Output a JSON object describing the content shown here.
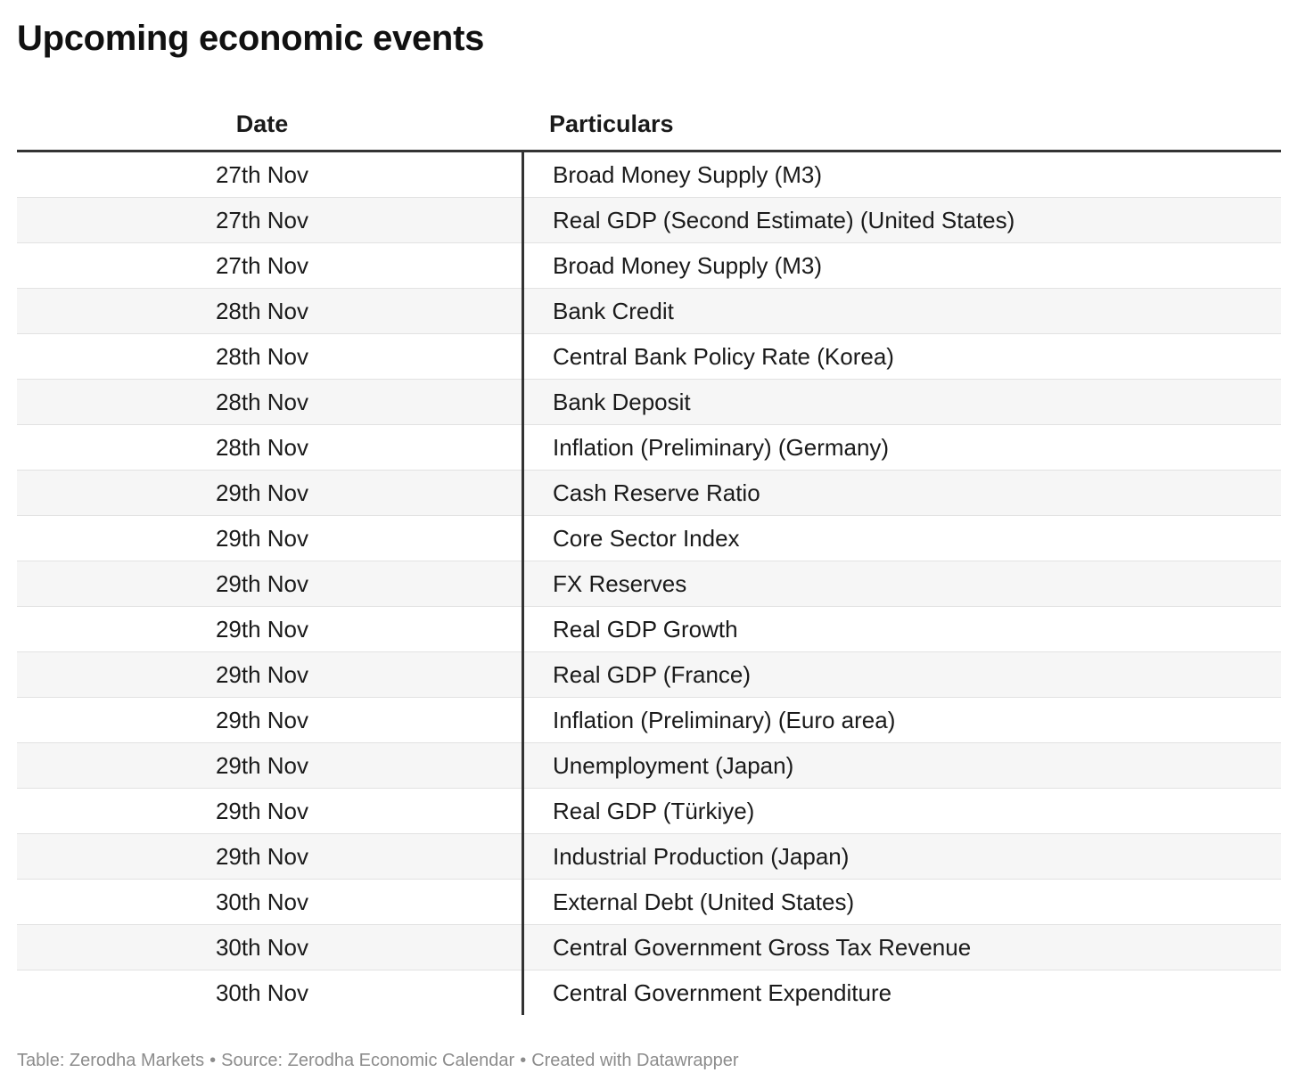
{
  "chart_data": {
    "type": "table",
    "title": "Upcoming economic events",
    "columns": [
      "Date",
      "Particulars"
    ],
    "rows": [
      {
        "date": "27th Nov",
        "particulars": "Broad Money Supply (M3)"
      },
      {
        "date": "27th Nov",
        "particulars": "Real GDP (Second Estimate) (United States)"
      },
      {
        "date": "27th Nov",
        "particulars": "Broad Money Supply (M3)"
      },
      {
        "date": "28th Nov",
        "particulars": "Bank Credit"
      },
      {
        "date": "28th Nov",
        "particulars": "Central Bank Policy Rate (Korea)"
      },
      {
        "date": "28th Nov",
        "particulars": "Bank Deposit"
      },
      {
        "date": "28th Nov",
        "particulars": "Inflation (Preliminary) (Germany)"
      },
      {
        "date": "29th Nov",
        "particulars": "Cash Reserve Ratio"
      },
      {
        "date": "29th Nov",
        "particulars": "Core Sector Index"
      },
      {
        "date": "29th Nov",
        "particulars": "FX Reserves"
      },
      {
        "date": "29th Nov",
        "particulars": "Real GDP Growth"
      },
      {
        "date": "29th Nov",
        "particulars": "Real GDP (France)"
      },
      {
        "date": "29th Nov",
        "particulars": "Inflation (Preliminary) (Euro area)"
      },
      {
        "date": "29th Nov",
        "particulars": "Unemployment (Japan)"
      },
      {
        "date": "29th Nov",
        "particulars": "Real GDP (Türkiye)"
      },
      {
        "date": "29th Nov",
        "particulars": "Industrial Production (Japan)"
      },
      {
        "date": "30th Nov",
        "particulars": "External Debt (United States)"
      },
      {
        "date": "30th Nov",
        "particulars": "Central Government Gross Tax Revenue"
      },
      {
        "date": "30th Nov",
        "particulars": "Central Government Expenditure"
      }
    ]
  },
  "footer": {
    "table_credit": "Table: Zerodha Markets",
    "source": "Source: Zerodha Economic Calendar",
    "created_with": "Created with Datawrapper",
    "separator": "•"
  },
  "colors": {
    "text": "#1a1a1a",
    "rule": "#333333",
    "row_alt": "#f6f6f6",
    "footer_text": "#8c8c8c"
  }
}
